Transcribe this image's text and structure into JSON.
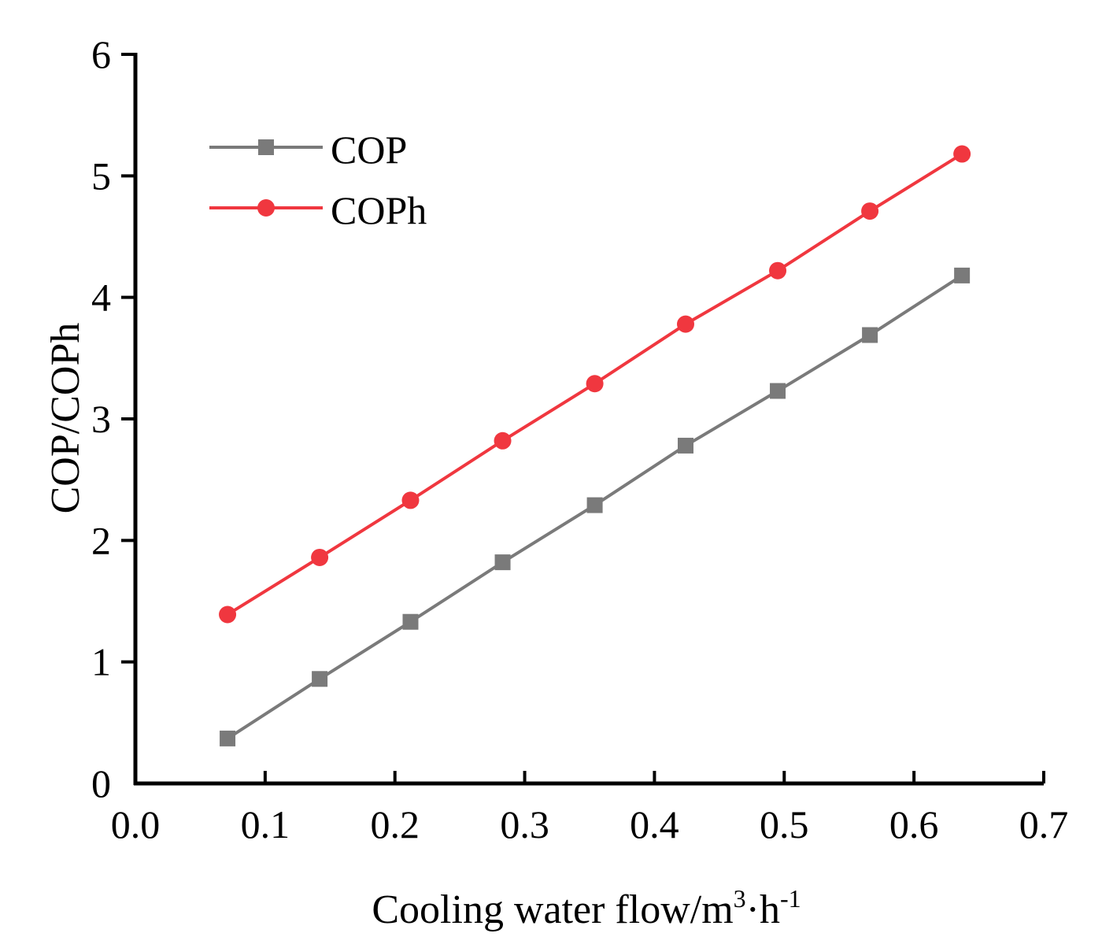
{
  "chart_data": {
    "type": "line",
    "xlabel_main": "Cooling water flow/m",
    "xlabel_sup1": "3",
    "xlabel_mid": "·h",
    "xlabel_sup2": "-1",
    "ylabel": "COP/COPh",
    "xlim": [
      0.0,
      0.7
    ],
    "ylim": [
      0,
      6
    ],
    "x_ticks": [
      "0.0",
      "0.1",
      "0.2",
      "0.3",
      "0.4",
      "0.5",
      "0.6",
      "0.7"
    ],
    "y_ticks": [
      "0",
      "1",
      "2",
      "3",
      "4",
      "5",
      "6"
    ],
    "x": [
      0.071,
      0.142,
      0.212,
      0.283,
      0.354,
      0.424,
      0.495,
      0.566,
      0.637
    ],
    "series": [
      {
        "name": "COP",
        "color": "#7a7a7a",
        "marker": "square",
        "values": [
          0.37,
          0.86,
          1.33,
          1.82,
          2.29,
          2.78,
          3.23,
          3.69,
          4.18
        ]
      },
      {
        "name": "COPh",
        "color": "#f0373f",
        "marker": "circle",
        "values": [
          1.39,
          1.86,
          2.33,
          2.82,
          3.29,
          3.78,
          4.22,
          4.71,
          5.18
        ]
      }
    ],
    "legend_position": "top-left"
  }
}
